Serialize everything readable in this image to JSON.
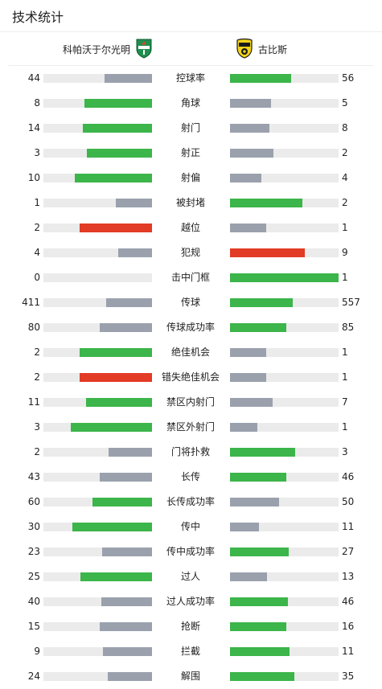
{
  "header": {
    "title": "技术统计"
  },
  "teams": {
    "home": {
      "name": "科帕沃于尔光明",
      "logo_icon": "breidablik-crest-icon"
    },
    "away": {
      "name": "古比斯",
      "logo_icon": "kups-crest-icon"
    }
  },
  "colors": {
    "green": "#3cb54a",
    "gray": "#9aa1ad",
    "red": "#e23b26",
    "track": "#ebebeb"
  },
  "stats": [
    {
      "label": "控球率",
      "home": "44",
      "away": "56",
      "home_fill": 0.44,
      "away_fill": 0.56,
      "home_color": "gray",
      "away_color": "green"
    },
    {
      "label": "角球",
      "home": "8",
      "away": "5",
      "home_fill": 0.62,
      "away_fill": 0.38,
      "home_color": "green",
      "away_color": "gray"
    },
    {
      "label": "射门",
      "home": "14",
      "away": "8",
      "home_fill": 0.64,
      "away_fill": 0.36,
      "home_color": "green",
      "away_color": "gray"
    },
    {
      "label": "射正",
      "home": "3",
      "away": "2",
      "home_fill": 0.6,
      "away_fill": 0.4,
      "home_color": "green",
      "away_color": "gray"
    },
    {
      "label": "射偏",
      "home": "10",
      "away": "4",
      "home_fill": 0.71,
      "away_fill": 0.29,
      "home_color": "green",
      "away_color": "gray"
    },
    {
      "label": "被封堵",
      "home": "1",
      "away": "2",
      "home_fill": 0.33,
      "away_fill": 0.67,
      "home_color": "gray",
      "away_color": "green"
    },
    {
      "label": "越位",
      "home": "2",
      "away": "1",
      "home_fill": 0.67,
      "away_fill": 0.33,
      "home_color": "red",
      "away_color": "gray"
    },
    {
      "label": "犯规",
      "home": "4",
      "away": "9",
      "home_fill": 0.31,
      "away_fill": 0.69,
      "home_color": "gray",
      "away_color": "red"
    },
    {
      "label": "击中门框",
      "home": "0",
      "away": "1",
      "home_fill": 0.0,
      "away_fill": 1.0,
      "home_color": "gray",
      "away_color": "green"
    },
    {
      "label": "传球",
      "home": "411",
      "away": "557",
      "home_fill": 0.42,
      "away_fill": 0.58,
      "home_color": "gray",
      "away_color": "green"
    },
    {
      "label": "传球成功率",
      "home": "80",
      "away": "85",
      "home_fill": 0.48,
      "away_fill": 0.52,
      "home_color": "gray",
      "away_color": "green"
    },
    {
      "label": "绝佳机会",
      "home": "2",
      "away": "1",
      "home_fill": 0.67,
      "away_fill": 0.33,
      "home_color": "green",
      "away_color": "gray"
    },
    {
      "label": "错失绝佳机会",
      "home": "2",
      "away": "1",
      "home_fill": 0.67,
      "away_fill": 0.33,
      "home_color": "red",
      "away_color": "gray"
    },
    {
      "label": "禁区内射门",
      "home": "11",
      "away": "7",
      "home_fill": 0.61,
      "away_fill": 0.39,
      "home_color": "green",
      "away_color": "gray"
    },
    {
      "label": "禁区外射门",
      "home": "3",
      "away": "1",
      "home_fill": 0.75,
      "away_fill": 0.25,
      "home_color": "green",
      "away_color": "gray"
    },
    {
      "label": "门将扑救",
      "home": "2",
      "away": "3",
      "home_fill": 0.4,
      "away_fill": 0.6,
      "home_color": "gray",
      "away_color": "green"
    },
    {
      "label": "长传",
      "home": "43",
      "away": "46",
      "home_fill": 0.48,
      "away_fill": 0.52,
      "home_color": "gray",
      "away_color": "green"
    },
    {
      "label": "长传成功率",
      "home": "60",
      "away": "50",
      "home_fill": 0.55,
      "away_fill": 0.45,
      "home_color": "green",
      "away_color": "gray"
    },
    {
      "label": "传中",
      "home": "30",
      "away": "11",
      "home_fill": 0.73,
      "away_fill": 0.27,
      "home_color": "green",
      "away_color": "gray"
    },
    {
      "label": "传中成功率",
      "home": "23",
      "away": "27",
      "home_fill": 0.46,
      "away_fill": 0.54,
      "home_color": "gray",
      "away_color": "green"
    },
    {
      "label": "过人",
      "home": "25",
      "away": "13",
      "home_fill": 0.66,
      "away_fill": 0.34,
      "home_color": "green",
      "away_color": "gray"
    },
    {
      "label": "过人成功率",
      "home": "40",
      "away": "46",
      "home_fill": 0.47,
      "away_fill": 0.53,
      "home_color": "gray",
      "away_color": "green"
    },
    {
      "label": "抢断",
      "home": "15",
      "away": "16",
      "home_fill": 0.48,
      "away_fill": 0.52,
      "home_color": "gray",
      "away_color": "green"
    },
    {
      "label": "拦截",
      "home": "9",
      "away": "11",
      "home_fill": 0.45,
      "away_fill": 0.55,
      "home_color": "gray",
      "away_color": "green"
    },
    {
      "label": "解围",
      "home": "24",
      "away": "35",
      "home_fill": 0.41,
      "away_fill": 0.59,
      "home_color": "gray",
      "away_color": "green"
    }
  ]
}
